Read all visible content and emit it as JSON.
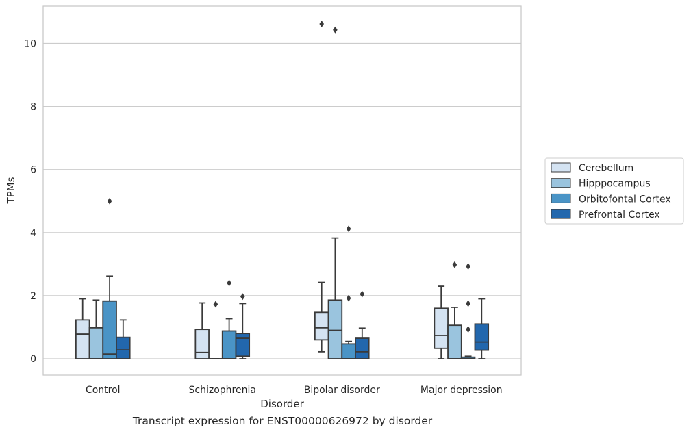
{
  "caption": "Transcript expression for ENST00000626972 by disorder",
  "colors": {
    "Cerebellum": "#d4e3f2",
    "Hipppocampus": "#9ac4de",
    "Orbitofontal Cortex": "#4a94c6",
    "Prefrontal Cortex": "#2267ad",
    "edge": "#3a3a3a",
    "grid": "#cccccc",
    "spine": "#c8c8c8"
  },
  "chart_data": {
    "type": "box",
    "title": "",
    "xlabel": "Disorder",
    "ylabel": "TPMs",
    "ylim": [
      -0.5,
      11.2
    ],
    "yticks": [
      0,
      2,
      4,
      6,
      8,
      10
    ],
    "grid": "horizontal",
    "legend_position": "right",
    "categories": [
      "Control",
      "Schizophrenia",
      "Bipolar disorder",
      "Major depression"
    ],
    "series": [
      {
        "name": "Cerebellum",
        "boxes": [
          {
            "whislo": 0.0,
            "q1": 0.0,
            "med": 0.78,
            "q3": 1.23,
            "whishi": 1.9,
            "fliers": []
          },
          {
            "whislo": 0.0,
            "q1": 0.0,
            "med": 0.2,
            "q3": 0.93,
            "whishi": 1.77,
            "fliers": []
          },
          {
            "whislo": 0.22,
            "q1": 0.6,
            "med": 0.98,
            "q3": 1.47,
            "whishi": 2.42,
            "fliers": [
              10.62
            ]
          },
          {
            "whislo": 0.0,
            "q1": 0.33,
            "med": 0.74,
            "q3": 1.6,
            "whishi": 2.3,
            "fliers": []
          }
        ]
      },
      {
        "name": "Hipppocampus",
        "boxes": [
          {
            "whislo": 0.0,
            "q1": 0.0,
            "med": 0.0,
            "q3": 0.98,
            "whishi": 1.86,
            "fliers": []
          },
          {
            "whislo": 0.0,
            "q1": 0.0,
            "med": 0.0,
            "q3": 0.0,
            "whishi": 0.0,
            "fliers": [
              1.73
            ]
          },
          {
            "whislo": 0.0,
            "q1": 0.0,
            "med": 0.9,
            "q3": 1.86,
            "whishi": 3.83,
            "fliers": [
              10.43
            ]
          },
          {
            "whislo": 0.0,
            "q1": 0.0,
            "med": 0.0,
            "q3": 1.06,
            "whishi": 1.63,
            "fliers": [
              2.98
            ]
          }
        ]
      },
      {
        "name": "Orbitofontal Cortex",
        "boxes": [
          {
            "whislo": 0.0,
            "q1": 0.0,
            "med": 0.15,
            "q3": 1.83,
            "whishi": 2.62,
            "fliers": [
              5.0
            ]
          },
          {
            "whislo": 0.0,
            "q1": 0.0,
            "med": 0.0,
            "q3": 0.88,
            "whishi": 1.27,
            "fliers": [
              2.4
            ]
          },
          {
            "whislo": 0.0,
            "q1": 0.0,
            "med": 0.0,
            "q3": 0.47,
            "whishi": 0.55,
            "fliers": [
              1.92,
              4.12
            ]
          },
          {
            "whislo": 0.0,
            "q1": 0.0,
            "med": 0.0,
            "q3": 0.05,
            "whishi": 0.08,
            "fliers": [
              0.93,
              1.75,
              2.93
            ]
          }
        ]
      },
      {
        "name": "Prefrontal Cortex",
        "boxes": [
          {
            "whislo": 0.0,
            "q1": 0.0,
            "med": 0.28,
            "q3": 0.68,
            "whishi": 1.23,
            "fliers": []
          },
          {
            "whislo": 0.0,
            "q1": 0.08,
            "med": 0.65,
            "q3": 0.8,
            "whishi": 1.75,
            "fliers": [
              1.97
            ]
          },
          {
            "whislo": 0.0,
            "q1": 0.0,
            "med": 0.22,
            "q3": 0.65,
            "whishi": 0.97,
            "fliers": [
              2.05
            ]
          },
          {
            "whislo": 0.0,
            "q1": 0.27,
            "med": 0.53,
            "q3": 1.1,
            "whishi": 1.9,
            "fliers": []
          }
        ]
      }
    ]
  }
}
